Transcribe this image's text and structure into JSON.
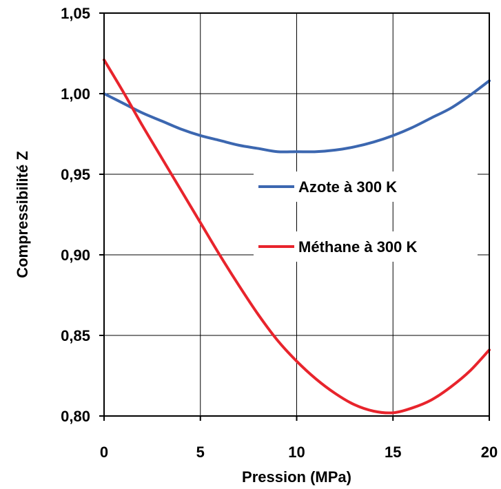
{
  "chart_data": {
    "type": "line",
    "xlabel": "Pression (MPa)",
    "ylabel": "Compressibilité Z",
    "xlim": [
      0,
      20
    ],
    "ylim": [
      0.8,
      1.05
    ],
    "x_ticks": [
      0,
      5,
      10,
      15,
      20
    ],
    "x_tick_labels": [
      "0",
      "5",
      "10",
      "15",
      "20"
    ],
    "y_ticks": [
      0.8,
      0.85,
      0.9,
      0.95,
      1.0,
      1.05
    ],
    "y_tick_labels": [
      "0,80",
      "0,85",
      "0,90",
      "0,95",
      "1,00",
      "1,05"
    ],
    "grid": true,
    "legend_placement": "center-right",
    "series": [
      {
        "name": "Azote à 300 K",
        "color": "#3c67b0",
        "x": [
          0,
          1,
          2,
          3,
          4,
          5,
          6,
          7,
          8,
          9,
          10,
          11,
          12,
          13,
          14,
          15,
          16,
          17,
          18,
          19,
          20
        ],
        "y": [
          1.0,
          0.994,
          0.988,
          0.983,
          0.978,
          0.974,
          0.971,
          0.968,
          0.966,
          0.964,
          0.964,
          0.964,
          0.965,
          0.967,
          0.97,
          0.974,
          0.979,
          0.985,
          0.991,
          0.999,
          1.008
        ]
      },
      {
        "name": "Méthane à 300 K",
        "color": "#e8242c",
        "x": [
          0,
          1,
          2,
          3,
          4,
          5,
          6,
          7,
          8,
          9,
          10,
          11,
          12,
          13,
          14,
          15,
          16,
          17,
          18,
          19,
          20
        ],
        "y": [
          1.021,
          1.001,
          0.98,
          0.96,
          0.94,
          0.92,
          0.9,
          0.881,
          0.863,
          0.847,
          0.834,
          0.823,
          0.814,
          0.807,
          0.803,
          0.802,
          0.805,
          0.81,
          0.818,
          0.828,
          0.841
        ]
      }
    ]
  }
}
